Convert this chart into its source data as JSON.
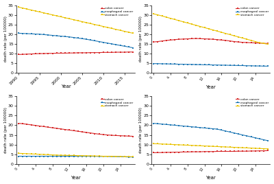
{
  "china": {
    "years": [
      1990,
      1991,
      1992,
      1993,
      1994,
      1995,
      1996,
      1997,
      1998,
      1999,
      2000,
      2001,
      2002,
      2003,
      2004,
      2005,
      2006,
      2007,
      2008,
      2009,
      2010,
      2011,
      2012,
      2013,
      2014,
      2015,
      2016,
      2017
    ],
    "colon": [
      9.5,
      9.6,
      9.7,
      9.8,
      9.9,
      10.0,
      10.0,
      10.1,
      10.1,
      10.2,
      10.2,
      10.2,
      10.3,
      10.3,
      10.4,
      10.4,
      10.4,
      10.5,
      10.5,
      10.5,
      10.6,
      10.6,
      10.6,
      10.7,
      10.7,
      10.7,
      10.8,
      10.8
    ],
    "esophageal": [
      20.5,
      20.4,
      20.3,
      20.2,
      20.1,
      20.0,
      19.8,
      19.6,
      19.4,
      19.2,
      19.0,
      18.8,
      18.6,
      18.3,
      18.0,
      17.7,
      17.4,
      17.0,
      16.6,
      16.2,
      15.8,
      15.4,
      15.0,
      14.6,
      14.2,
      13.8,
      13.4,
      13.0
    ],
    "stomach": [
      34.0,
      33.5,
      33.0,
      32.5,
      32.0,
      31.5,
      31.0,
      30.5,
      30.0,
      29.5,
      29.0,
      28.5,
      28.0,
      27.5,
      27.0,
      26.5,
      26.0,
      25.5,
      25.0,
      24.5,
      24.0,
      23.5,
      23.0,
      22.5,
      22.0,
      21.5,
      21.0,
      20.5
    ]
  },
  "japan": {
    "colon": [
      16.0,
      16.2,
      16.5,
      16.8,
      17.0,
      17.2,
      17.4,
      17.5,
      17.6,
      17.7,
      17.8,
      17.7,
      17.6,
      17.5,
      17.4,
      17.2,
      17.0,
      16.8,
      16.5,
      16.2,
      16.0,
      15.8,
      15.7,
      15.6,
      15.5,
      15.4,
      15.3,
      15.2
    ],
    "esophageal": [
      4.8,
      4.8,
      4.7,
      4.7,
      4.6,
      4.6,
      4.5,
      4.5,
      4.4,
      4.4,
      4.3,
      4.3,
      4.2,
      4.2,
      4.1,
      4.1,
      4.0,
      4.0,
      3.9,
      3.9,
      3.8,
      3.8,
      3.7,
      3.7,
      3.6,
      3.6,
      3.5,
      3.5
    ],
    "stomach": [
      30.5,
      30.0,
      29.4,
      28.8,
      28.2,
      27.6,
      27.0,
      26.4,
      25.8,
      25.2,
      24.6,
      24.0,
      23.4,
      22.8,
      22.2,
      21.6,
      21.0,
      20.4,
      19.8,
      19.2,
      18.6,
      18.0,
      17.4,
      16.8,
      16.2,
      15.6,
      15.2,
      14.8
    ]
  },
  "us": {
    "colon": [
      21.0,
      20.8,
      20.5,
      20.2,
      19.9,
      19.6,
      19.3,
      19.0,
      18.7,
      18.4,
      18.1,
      17.8,
      17.5,
      17.2,
      16.9,
      16.6,
      16.3,
      16.0,
      15.7,
      15.4,
      15.2,
      15.0,
      14.8,
      14.7,
      14.6,
      14.5,
      14.4,
      14.3
    ],
    "esophageal": [
      4.0,
      4.0,
      4.0,
      4.0,
      4.0,
      4.0,
      4.0,
      4.0,
      4.0,
      4.0,
      4.0,
      4.0,
      4.0,
      4.0,
      4.0,
      4.0,
      4.0,
      4.0,
      4.0,
      3.9,
      3.9,
      3.9,
      3.8,
      3.8,
      3.7,
      3.7,
      3.6,
      3.6
    ],
    "stomach": [
      5.5,
      5.4,
      5.3,
      5.2,
      5.1,
      5.0,
      4.9,
      4.8,
      4.7,
      4.6,
      4.5,
      4.5,
      4.4,
      4.4,
      4.3,
      4.3,
      4.2,
      4.2,
      4.1,
      4.1,
      4.0,
      4.0,
      4.0,
      3.9,
      3.9,
      3.8,
      3.8,
      3.7
    ]
  },
  "india": {
    "colon": [
      5.8,
      5.9,
      5.9,
      6.0,
      6.0,
      6.1,
      6.1,
      6.2,
      6.2,
      6.3,
      6.3,
      6.3,
      6.4,
      6.4,
      6.4,
      6.5,
      6.5,
      6.5,
      6.5,
      6.5,
      6.6,
      6.6,
      6.6,
      6.7,
      6.7,
      6.8,
      6.8,
      6.9
    ],
    "esophageal": [
      21.0,
      20.8,
      20.6,
      20.4,
      20.2,
      20.0,
      19.8,
      19.6,
      19.4,
      19.2,
      19.0,
      18.8,
      18.6,
      18.4,
      18.2,
      18.0,
      17.5,
      17.0,
      16.5,
      16.0,
      15.5,
      15.0,
      14.5,
      14.0,
      13.5,
      13.0,
      12.5,
      12.0
    ],
    "stomach": [
      10.5,
      10.4,
      10.3,
      10.2,
      10.1,
      10.0,
      9.9,
      9.8,
      9.7,
      9.6,
      9.5,
      9.4,
      9.3,
      9.2,
      9.1,
      9.0,
      8.9,
      8.8,
      8.7,
      8.6,
      8.5,
      8.4,
      8.3,
      8.2,
      8.1,
      8.0,
      7.9,
      7.8
    ]
  },
  "colon_color": "#d62728",
  "esophageal_color": "#1f77b4",
  "stomach_color": "#e8c100",
  "marker_size": 1.8,
  "line_width": 0.8,
  "fig_bg": "#ffffff",
  "ylim": [
    0,
    35
  ],
  "yticks": [
    0,
    5,
    10,
    15,
    20,
    25,
    30,
    35
  ]
}
